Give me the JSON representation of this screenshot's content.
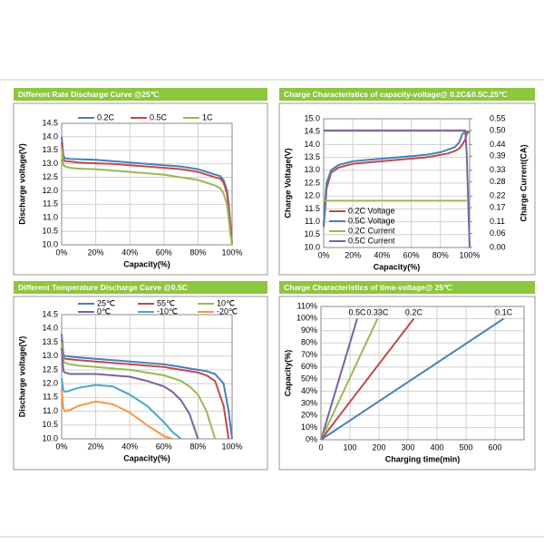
{
  "chart_data": [
    {
      "type": "line",
      "title": "Different Rate Discharge Curve @25℃",
      "xlabel": "Capacity(%)",
      "ylabel": "Discharge voltage(V)",
      "legend": "top",
      "grid": true,
      "x": [
        0,
        1,
        2,
        5,
        10,
        20,
        30,
        40,
        50,
        60,
        70,
        80,
        85,
        90,
        93,
        95,
        97,
        98,
        99,
        100
      ],
      "xlim": [
        0,
        100
      ],
      "xticks": [
        {
          "value": 0,
          "label": "0%"
        },
        {
          "value": 20,
          "label": "20%"
        },
        {
          "value": 40,
          "label": "40%"
        },
        {
          "value": 60,
          "label": "60%"
        },
        {
          "value": 80,
          "label": "80%"
        },
        {
          "value": 100,
          "label": "100%"
        }
      ],
      "ylim": [
        10,
        14.5
      ],
      "yticks": [
        {
          "value": 10,
          "label": "10.0"
        },
        10.5,
        {
          "value": 11,
          "label": "11.0"
        },
        11.5,
        {
          "value": 12,
          "label": "12.0"
        },
        12.5,
        {
          "value": 13,
          "label": "13.0"
        },
        13.5,
        {
          "value": 14,
          "label": "14.0"
        },
        14.5
      ],
      "series": [
        {
          "name": "0.2C",
          "color": "#4a7ebb",
          "values": [
            14.0,
            13.3,
            13.2,
            13.18,
            13.17,
            13.15,
            13.1,
            13.05,
            13.0,
            12.95,
            12.9,
            12.8,
            12.7,
            12.6,
            12.55,
            12.4,
            12.0,
            11.5,
            10.8,
            10.0
          ]
        },
        {
          "name": "0.5C",
          "color": "#be4b48",
          "values": [
            13.8,
            13.15,
            13.1,
            13.08,
            13.05,
            13.02,
            13.0,
            12.95,
            12.9,
            12.85,
            12.8,
            12.7,
            12.6,
            12.5,
            12.45,
            12.3,
            11.9,
            11.4,
            10.7,
            10.0
          ]
        },
        {
          "name": "1C",
          "color": "#98b954",
          "values": [
            13.6,
            12.95,
            12.9,
            12.85,
            12.82,
            12.8,
            12.75,
            12.7,
            12.65,
            12.6,
            12.5,
            12.4,
            12.3,
            12.2,
            12.1,
            11.9,
            11.5,
            11.0,
            10.4,
            10.0
          ]
        }
      ]
    },
    {
      "type": "line",
      "title": "Charge  Characteristics of capacity-voltage@ 0.2C&0.5C,25℃",
      "xlabel": "Capacity(%)",
      "ylabel": "Charge Voltage(V)",
      "y2label": "Charge Current(CA)",
      "legend": "inside-bottom-left",
      "grid": true,
      "x": [
        0,
        1,
        2,
        5,
        10,
        20,
        30,
        40,
        50,
        60,
        70,
        80,
        85,
        90,
        93,
        95,
        97,
        98,
        99,
        100
      ],
      "xlim": [
        0,
        100
      ],
      "xticks": [
        {
          "value": 0,
          "label": "0%"
        },
        {
          "value": 20,
          "label": "20%"
        },
        {
          "value": 40,
          "label": "40%"
        },
        {
          "value": 60,
          "label": "60%"
        },
        {
          "value": 80,
          "label": "80%"
        },
        {
          "value": 100,
          "label": "100%"
        }
      ],
      "ylim": [
        10,
        15
      ],
      "yticks": [
        {
          "value": 10,
          "label": "10.0"
        },
        10.5,
        {
          "value": 11,
          "label": "11.0"
        },
        11.5,
        {
          "value": 12,
          "label": "12.0"
        },
        12.5,
        {
          "value": 13,
          "label": "13.0"
        },
        13.5,
        {
          "value": 14,
          "label": "14.0"
        },
        14.5,
        {
          "value": 15,
          "label": "15.0"
        }
      ],
      "y2lim": [
        0,
        0.55
      ],
      "y2ticks": [
        {
          "value": 0,
          "label": "0.00"
        },
        0.06,
        0.11,
        0.17,
        0.22,
        0.28,
        0.33,
        0.39,
        0.44,
        {
          "value": 0.5,
          "label": "0.50"
        },
        0.55
      ],
      "series": [
        {
          "name": "0.2C Voltage",
          "color": "#be4b48",
          "values": [
            10.8,
            11.5,
            12.3,
            12.9,
            13.1,
            13.25,
            13.3,
            13.35,
            13.4,
            13.45,
            13.5,
            13.6,
            13.65,
            13.75,
            13.85,
            14.0,
            14.2,
            14.4,
            14.5,
            14.5
          ]
        },
        {
          "name": "0.5C Voltage",
          "color": "#4a7ebb",
          "values": [
            10.9,
            11.8,
            12.5,
            13.0,
            13.2,
            13.35,
            13.4,
            13.45,
            13.5,
            13.55,
            13.6,
            13.7,
            13.8,
            13.9,
            14.1,
            14.4,
            14.5,
            14.5,
            14.5,
            null
          ]
        },
        {
          "name": "0.2C Current",
          "color": "#98b954",
          "axis": "y2",
          "values": [
            0.2,
            0.2,
            0.2,
            0.2,
            0.2,
            0.2,
            0.2,
            0.2,
            0.2,
            0.2,
            0.2,
            0.2,
            0.2,
            0.2,
            0.2,
            0.2,
            0.2,
            0.2,
            null,
            null
          ]
        },
        {
          "name": "0.5C Current",
          "color": "#7d60a0",
          "axis": "y2",
          "values": [
            0.5,
            0.5,
            0.5,
            0.5,
            0.5,
            0.5,
            0.5,
            0.5,
            0.5,
            0.5,
            0.5,
            0.5,
            0.5,
            0.5,
            0.5,
            0.5,
            0.5,
            0.4,
            0.2,
            0.0
          ]
        }
      ]
    },
    {
      "type": "line",
      "title": "Different Temperature Discharge Curve @0.5C",
      "xlabel": "Capacity(%)",
      "ylabel": "Discharge voltage(V)",
      "legend": "top",
      "grid": true,
      "x": [
        0,
        1,
        2,
        5,
        10,
        20,
        30,
        40,
        50,
        60,
        65,
        70,
        75,
        80,
        85,
        90,
        95,
        98,
        100
      ],
      "xlim": [
        0,
        100
      ],
      "xticks": [
        {
          "value": 0,
          "label": "0%"
        },
        {
          "value": 20,
          "label": "20%"
        },
        {
          "value": 40,
          "label": "40%"
        },
        {
          "value": 60,
          "label": "60%"
        },
        {
          "value": 80,
          "label": "80%"
        },
        {
          "value": 100,
          "label": "100%"
        }
      ],
      "ylim": [
        10,
        14.5
      ],
      "yticks": [
        {
          "value": 10,
          "label": "10.0"
        },
        10.5,
        {
          "value": 11,
          "label": "11.0"
        },
        11.5,
        {
          "value": 12,
          "label": "12.0"
        },
        12.5,
        {
          "value": 13,
          "label": "13.0"
        },
        13.5,
        {
          "value": 14,
          "label": "14.0"
        },
        14.5
      ],
      "series": [
        {
          "name": "25℃",
          "color": "#4a7ebb",
          "values": [
            13.8,
            13.05,
            13.0,
            12.98,
            12.95,
            12.9,
            12.85,
            12.8,
            12.75,
            12.7,
            12.65,
            12.6,
            12.55,
            12.5,
            12.45,
            12.35,
            12.0,
            11.0,
            10.0
          ]
        },
        {
          "name": "55℃",
          "color": "#be4b48",
          "values": [
            13.6,
            12.95,
            12.9,
            12.88,
            12.85,
            12.8,
            12.75,
            12.7,
            12.65,
            12.6,
            12.55,
            12.5,
            12.45,
            12.4,
            12.3,
            12.1,
            11.2,
            10.0,
            null
          ]
        },
        {
          "name": "10℃",
          "color": "#98b954",
          "values": [
            13.5,
            12.8,
            12.75,
            12.7,
            12.65,
            12.6,
            12.55,
            12.5,
            12.4,
            12.3,
            12.2,
            12.1,
            11.9,
            11.6,
            11.0,
            10.0,
            null,
            null,
            null
          ]
        },
        {
          "name": "0℃",
          "color": "#7d60a0",
          "values": [
            13.3,
            12.45,
            12.4,
            12.35,
            12.35,
            12.35,
            12.3,
            12.25,
            12.1,
            11.9,
            11.7,
            11.4,
            10.9,
            10.0,
            null,
            null,
            null,
            null,
            null
          ]
        },
        {
          "name": "-10℃",
          "color": "#46aac5",
          "values": [
            12.2,
            11.75,
            11.7,
            11.75,
            11.85,
            11.95,
            11.9,
            11.6,
            11.2,
            10.6,
            10.25,
            10.0,
            null,
            null,
            null,
            null,
            null,
            null,
            null
          ]
        },
        {
          "name": "-20℃",
          "color": "#f79646",
          "values": [
            11.8,
            11.1,
            11.0,
            11.05,
            11.2,
            11.35,
            11.25,
            10.95,
            10.5,
            10.1,
            10.0,
            null,
            null,
            null,
            null,
            null,
            null,
            null,
            null
          ]
        }
      ]
    },
    {
      "type": "line",
      "title": "Charge  Characteristics of time-voltage@ 25℃",
      "xlabel": "Charging time(min)",
      "ylabel": "Capacity(%)",
      "legend": "line-end",
      "grid": true,
      "xlim": [
        0,
        700
      ],
      "xticks": [
        0,
        100,
        200,
        300,
        400,
        500,
        600
      ],
      "ylim": [
        0,
        110
      ],
      "yticks": [
        {
          "value": 0,
          "label": "0%"
        },
        {
          "value": 10,
          "label": "10%"
        },
        {
          "value": 20,
          "label": "20%"
        },
        {
          "value": 30,
          "label": "30%"
        },
        {
          "value": 40,
          "label": "40%"
        },
        {
          "value": 50,
          "label": "50%"
        },
        {
          "value": 60,
          "label": "60%"
        },
        {
          "value": 70,
          "label": "70%"
        },
        {
          "value": 80,
          "label": "80%"
        },
        {
          "value": 90,
          "label": "90%"
        },
        {
          "value": 100,
          "label": "100%"
        },
        {
          "value": 110,
          "label": "110%"
        }
      ],
      "series": [
        {
          "name": "0.5C",
          "color": "#7d60a0",
          "x": [
            0,
            125
          ],
          "values": [
            0,
            100
          ]
        },
        {
          "name": "0.33C",
          "color": "#98b954",
          "x": [
            0,
            195
          ],
          "values": [
            0,
            100
          ]
        },
        {
          "name": "0.2C",
          "color": "#be4b48",
          "x": [
            0,
            320
          ],
          "values": [
            0,
            100
          ]
        },
        {
          "name": "0.1C",
          "color": "#4a7ebb",
          "x": [
            0,
            630
          ],
          "values": [
            0,
            100
          ]
        }
      ]
    }
  ]
}
